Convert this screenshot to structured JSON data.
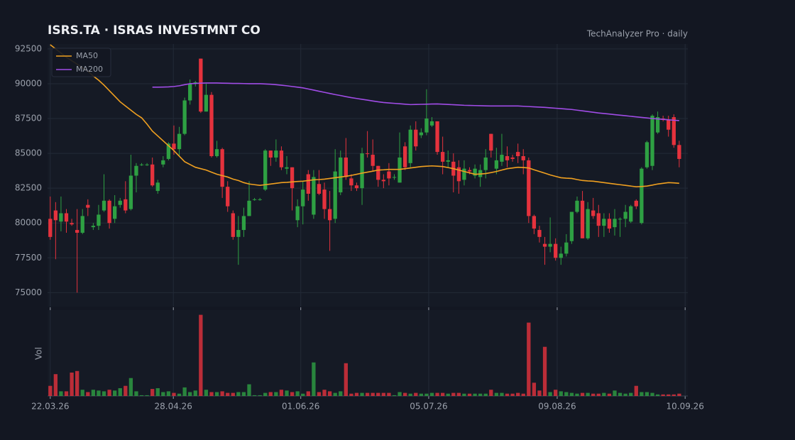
{
  "chart_data": {
    "type": "candlestick",
    "title": "ISRS.TA  ·  ISRAS INVESTMNT CO",
    "subtitle": "TechAnalyzer Pro · daily",
    "volume_label": "Vol",
    "up_color": "#2ea043",
    "down_color": "#e5323d",
    "legend": "upper left",
    "grid": true,
    "ylim": [
      74000,
      92850
    ],
    "yticks": [
      75000,
      77500,
      80000,
      82500,
      85000,
      87500,
      90000,
      92500
    ],
    "xlim": [
      -0.5,
      118.6
    ],
    "xticks": [
      {
        "value": 0,
        "label": "22.03.26"
      },
      {
        "value": 22.9,
        "label": "28.04.26"
      },
      {
        "value": 46.6,
        "label": "01.06.26"
      },
      {
        "value": 70.4,
        "label": "05.07.26"
      },
      {
        "value": 94.3,
        "label": "09.08.26"
      },
      {
        "value": 118.1,
        "label": "10.09.26"
      }
    ],
    "volume_ylim": [
      0,
      110
    ],
    "open": [
      80300,
      80900,
      80100,
      80700,
      80000,
      79500,
      79300,
      81300,
      79700,
      79800,
      80900,
      81600,
      80300,
      81300,
      81700,
      81000,
      83400,
      84200,
      84200,
      84200,
      82300,
      84200,
      84600,
      85700,
      85300,
      86400,
      88800,
      90000,
      91800,
      88000,
      89200,
      84800,
      85300,
      82600,
      80700,
      79000,
      79500,
      80500,
      81700,
      81700,
      82400,
      85200,
      84700,
      85200,
      83900,
      84000,
      80200,
      81200,
      83500,
      80600,
      82800,
      82400,
      81000,
      80300,
      82200,
      84700,
      83200,
      82700,
      82500,
      85000,
      84900,
      84100,
      83100,
      83700,
      83300,
      82900,
      85500,
      84300,
      86700,
      86300,
      86500,
      87000,
      87300,
      85100,
      84400,
      84400,
      84000,
      83100,
      83800,
      83400,
      83300,
      83800,
      86400,
      83900,
      84400,
      84800,
      84700,
      85100,
      84800,
      84500,
      80500,
      79500,
      78500,
      78300,
      78500,
      77500,
      77800,
      78700,
      80800,
      81600,
      78900,
      80900,
      80700,
      79800,
      80300,
      79700,
      80300,
      80300,
      80100,
      81600,
      80000,
      84000,
      84100,
      86500,
      87500,
      87400,
      87600,
      85600
    ],
    "high": [
      81900,
      81500,
      81900,
      81000,
      80300,
      81000,
      81000,
      81700,
      80000,
      81300,
      83500,
      81700,
      82000,
      81800,
      83000,
      84900,
      84300,
      84300,
      84300,
      84700,
      83100,
      84800,
      85800,
      87000,
      86900,
      89000,
      90300,
      90200,
      91800,
      90000,
      89400,
      85900,
      85400,
      83000,
      80900,
      80500,
      81100,
      83000,
      81800,
      81800,
      85300,
      85200,
      86000,
      85500,
      84800,
      84000,
      81700,
      83000,
      83800,
      83800,
      83800,
      82900,
      82300,
      85300,
      85200,
      86100,
      83500,
      82900,
      85400,
      86600,
      86000,
      84100,
      83500,
      84300,
      83500,
      86500,
      85800,
      87000,
      87300,
      86800,
      89600,
      87600,
      87300,
      86200,
      85200,
      85000,
      84500,
      84500,
      84000,
      84200,
      84200,
      85300,
      86400,
      85400,
      86400,
      85500,
      84900,
      85700,
      85300,
      84700,
      80600,
      79800,
      79000,
      80400,
      78900,
      78300,
      79200,
      80800,
      81900,
      82300,
      81500,
      81800,
      81300,
      80700,
      80700,
      81000,
      80400,
      81300,
      81300,
      81700,
      84000,
      85900,
      87800,
      88000,
      87700,
      87700,
      87800,
      85900
    ],
    "low": [
      78800,
      77400,
      79400,
      79300,
      79800,
      75000,
      79200,
      80500,
      79500,
      79500,
      80800,
      79600,
      80000,
      81100,
      80700,
      80900,
      82200,
      84100,
      84100,
      82600,
      82100,
      84000,
      84500,
      84900,
      84800,
      86300,
      88500,
      89800,
      87900,
      88000,
      84700,
      84700,
      81800,
      80800,
      78800,
      77000,
      79000,
      80500,
      81600,
      81600,
      82300,
      84100,
      84400,
      83800,
      83500,
      80900,
      79700,
      79900,
      81600,
      80300,
      82000,
      80300,
      78000,
      80000,
      82000,
      83100,
      82300,
      82300,
      81300,
      84700,
      83700,
      82600,
      82500,
      82700,
      83100,
      82900,
      83800,
      84000,
      85200,
      86100,
      86300,
      86900,
      84900,
      83500,
      84000,
      82200,
      82100,
      82700,
      83500,
      83200,
      82600,
      83200,
      84700,
      83500,
      84100,
      84000,
      84400,
      84300,
      83500,
      80000,
      79200,
      78600,
      77000,
      77900,
      77300,
      77000,
      77600,
      78500,
      80700,
      78900,
      78800,
      80300,
      79000,
      79000,
      79300,
      79100,
      79000,
      79700,
      80000,
      81000,
      79900,
      83900,
      83800,
      86400,
      87300,
      86200,
      85400,
      84000
    ],
    "close": [
      79000,
      80200,
      80700,
      80100,
      79900,
      79300,
      80500,
      81100,
      79800,
      80600,
      81600,
      80000,
      81200,
      81600,
      80900,
      83400,
      84100,
      84200,
      84200,
      82700,
      82900,
      84500,
      85700,
      85300,
      86400,
      88800,
      90000,
      90100,
      88000,
      89200,
      84800,
      85300,
      82600,
      81200,
      79000,
      79500,
      80500,
      81600,
      81700,
      81700,
      85200,
      84700,
      85200,
      84000,
      84000,
      82500,
      81200,
      82400,
      82100,
      83300,
      82100,
      81000,
      80200,
      83700,
      84700,
      83300,
      82700,
      82500,
      85000,
      84950,
      84100,
      83100,
      83000,
      83200,
      83300,
      84700,
      84000,
      86700,
      85500,
      86500,
      87500,
      87300,
      85100,
      84400,
      84500,
      83400,
      83000,
      83900,
      83700,
      83900,
      83800,
      84700,
      85200,
      84500,
      84900,
      84500,
      84600,
      84800,
      84500,
      80500,
      79600,
      79000,
      78300,
      78500,
      77500,
      77800,
      78600,
      80800,
      81600,
      78900,
      81000,
      80500,
      79800,
      80300,
      79600,
      80300,
      80300,
      80800,
      81200,
      81200,
      83900,
      85800,
      87700,
      87600,
      87400,
      86700,
      85600,
      84600
    ],
    "volume": [
      13,
      28,
      6,
      6,
      30,
      32,
      8,
      5,
      8,
      7,
      6,
      8,
      7,
      10,
      13,
      23,
      6,
      1,
      1,
      9,
      10,
      5,
      6,
      4,
      3,
      11,
      5,
      7,
      104,
      8,
      5,
      5,
      6,
      4,
      4,
      5,
      5,
      15,
      1,
      1,
      4,
      5,
      5,
      8,
      7,
      5,
      6,
      3,
      6,
      43,
      5,
      8,
      6,
      4,
      6,
      42,
      3,
      4,
      4,
      4,
      4,
      4,
      4,
      4,
      1,
      5,
      4,
      3,
      4,
      3,
      3,
      4,
      4,
      4,
      3,
      4,
      4,
      3,
      3,
      3,
      3,
      3,
      8,
      4,
      4,
      3,
      3,
      4,
      3,
      94,
      17,
      7,
      63,
      5,
      8,
      6,
      5,
      4,
      3,
      4,
      4,
      3,
      3,
      4,
      3,
      7,
      4,
      3,
      4,
      13,
      5,
      5,
      4,
      2,
      2,
      2,
      2,
      3
    ],
    "series": [
      {
        "name": "MA50",
        "color": "#f0a020",
        "values": [
          92800,
          92500,
          92200,
          91900,
          91650,
          91400,
          91150,
          90900,
          90550,
          90250,
          89900,
          89500,
          89100,
          88700,
          88400,
          88100,
          87800,
          87550,
          87100,
          86600,
          86250,
          85900,
          85550,
          85200,
          84800,
          84400,
          84200,
          84000,
          83900,
          83800,
          83650,
          83500,
          83400,
          83300,
          83150,
          83050,
          82900,
          82800,
          82750,
          82700,
          82750,
          82800,
          82850,
          82900,
          82920,
          82950,
          82980,
          83000,
          83050,
          83100,
          83120,
          83150,
          83200,
          83250,
          83300,
          83350,
          83420,
          83500,
          83580,
          83650,
          83720,
          83800,
          83820,
          83850,
          83850,
          83850,
          83900,
          83950,
          84000,
          84050,
          84080,
          84100,
          84080,
          84050,
          83980,
          83900,
          83800,
          83700,
          83600,
          83500,
          83520,
          83550,
          83620,
          83700,
          83800,
          83900,
          83950,
          84000,
          83980,
          83950,
          83820,
          83700,
          83580,
          83450,
          83350,
          83250,
          83220,
          83200,
          83120,
          83050,
          83020,
          83000,
          82950,
          82900,
          82850,
          82800,
          82750,
          82700,
          82650,
          82600,
          82620,
          82650,
          82720,
          82800,
          82850,
          82900,
          82880,
          82850
        ]
      },
      {
        "name": "MA200",
        "color": "#a04ce6",
        "values": [
          null,
          null,
          null,
          null,
          null,
          null,
          null,
          null,
          null,
          null,
          null,
          null,
          null,
          null,
          null,
          null,
          null,
          null,
          null,
          89750,
          89750,
          89760,
          89770,
          89800,
          89850,
          89930,
          90000,
          90020,
          90040,
          90050,
          90050,
          90050,
          90040,
          90030,
          90020,
          90020,
          90010,
          90000,
          90000,
          90000,
          89980,
          89960,
          89930,
          89890,
          89850,
          89800,
          89750,
          89700,
          89620,
          89540,
          89460,
          89380,
          89300,
          89220,
          89150,
          89070,
          89000,
          88940,
          88880,
          88820,
          88760,
          88700,
          88650,
          88620,
          88590,
          88560,
          88530,
          88500,
          88510,
          88520,
          88530,
          88540,
          88550,
          88530,
          88510,
          88490,
          88470,
          88450,
          88440,
          88430,
          88420,
          88410,
          88400,
          88400,
          88400,
          88400,
          88400,
          88400,
          88380,
          88360,
          88340,
          88320,
          88300,
          88270,
          88240,
          88210,
          88180,
          88150,
          88100,
          88050,
          88000,
          87950,
          87900,
          87860,
          87820,
          87780,
          87740,
          87700,
          87660,
          87620,
          87580,
          87540,
          87500,
          87470,
          87440,
          87410,
          87380,
          87350
        ]
      }
    ]
  }
}
